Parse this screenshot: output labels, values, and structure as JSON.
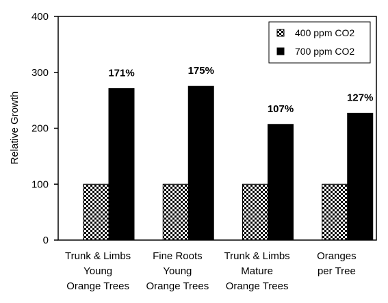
{
  "chart_data": {
    "type": "bar",
    "ylabel": "Relative Growth",
    "ylim": [
      0,
      400
    ],
    "yticks": [
      "0",
      "100",
      "200",
      "300",
      "400"
    ],
    "categories": [
      [
        "Trunk & Limbs",
        "Young",
        "Orange Trees"
      ],
      [
        "Fine Roots",
        "Young",
        "Orange Trees"
      ],
      [
        "Trunk & Limbs",
        "Mature",
        "Orange Trees"
      ],
      [
        "Oranges",
        "per Tree"
      ]
    ],
    "series": [
      {
        "name": "400 ppm CO2",
        "values": [
          100,
          100,
          100,
          100
        ],
        "pattern": "checkerboard",
        "color": "#000000"
      },
      {
        "name": "700 ppm CO2",
        "values": [
          271,
          275,
          207,
          227
        ],
        "pattern": "solid",
        "color": "#000000"
      }
    ],
    "data_labels": [
      "171%",
      "175%",
      "107%",
      "127%"
    ],
    "grid": false,
    "legend_position": "top-right"
  }
}
